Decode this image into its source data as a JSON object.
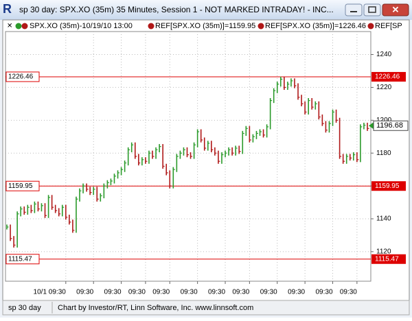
{
  "window": {
    "title": "sp 30 day: SPX.XO (35m) 35 Minutes, Session 1 - NOT MARKED INTRADAY! - INC...",
    "status_left": "sp 30 day",
    "status_text": "Chart by Investor/RT, Linn Software, Inc. www.linnsoft.com"
  },
  "legend": [
    "SPX.XO (35m)-10/19/10 13:00",
    "REF[SPX.XO (35m)]=1159.95",
    "REF[SPX.XO (35m)]=1226.46",
    "REF[SP"
  ],
  "chart_data": {
    "type": "ohlc",
    "values": [
      1135,
      1128,
      1124,
      1143,
      1146,
      1144,
      1147,
      1145,
      1149,
      1146,
      1148,
      1142,
      1153,
      1147,
      1145,
      1143,
      1147,
      1141,
      1138,
      1133,
      1152,
      1157,
      1160,
      1158,
      1156,
      1158,
      1152,
      1154,
      1160,
      1162,
      1163,
      1166,
      1168,
      1170,
      1174,
      1182,
      1185,
      1178,
      1174,
      1176,
      1175,
      1180,
      1178,
      1182,
      1184,
      1172,
      1168,
      1160,
      1170,
      1178,
      1180,
      1182,
      1179,
      1178,
      1185,
      1193,
      1188,
      1183,
      1186,
      1182,
      1180,
      1175,
      1179,
      1180,
      1182,
      1180,
      1183,
      1181,
      1192,
      1195,
      1188,
      1190,
      1192,
      1193,
      1191,
      1196,
      1212,
      1218,
      1222,
      1225,
      1220,
      1222,
      1224,
      1221,
      1214,
      1210,
      1205,
      1212,
      1208,
      1210,
      1202,
      1198,
      1194,
      1198,
      1205,
      1200,
      1178,
      1175,
      1178,
      1177,
      1179,
      1176,
      1196,
      1197,
      1195
    ],
    "categories": [
      null,
      null,
      null,
      null,
      null,
      null,
      null,
      null,
      null,
      null,
      null,
      null,
      null,
      null,
      null,
      null,
      null,
      "10/1 09:30",
      null,
      null,
      null,
      null,
      null,
      null,
      null,
      "09:30",
      null,
      null,
      null,
      null,
      null,
      null,
      null,
      "09:30",
      null,
      null,
      null,
      null,
      null,
      null,
      "09:30",
      null,
      null,
      null,
      null,
      null,
      null,
      "09:30",
      null,
      null,
      null,
      null,
      null,
      null,
      null,
      "09:30",
      null,
      null,
      null,
      null,
      null,
      null,
      null,
      "09:30",
      null,
      null,
      null,
      null,
      null,
      null,
      "09:30",
      null,
      null,
      null,
      null,
      null,
      null,
      null,
      "09:30",
      null,
      null,
      null,
      null,
      null,
      null,
      null,
      "09:30",
      null,
      null,
      null,
      null,
      null,
      null,
      null,
      "09:30",
      null,
      null,
      null,
      null,
      null,
      null,
      "09:30",
      null,
      null,
      null
    ],
    "up_color": "#2a9a2a",
    "down_color": "#b01818",
    "ref_color": "#dd0000",
    "ylim": [
      1102,
      1254
    ],
    "yticks": [
      1120,
      1140,
      1160,
      1180,
      1200,
      1220,
      1240
    ],
    "ref_lines": [
      1226.46,
      1159.95,
      1115.47
    ],
    "last_price": 1196.68,
    "grid": true
  }
}
